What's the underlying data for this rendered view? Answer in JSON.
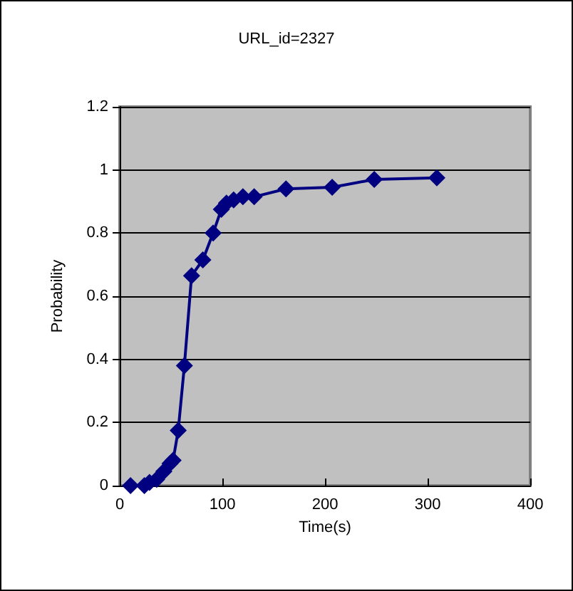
{
  "chart_data": {
    "type": "line",
    "title": "URL_id=2327",
    "xlabel": "Time(s)",
    "ylabel": "Probability",
    "x": [
      10.5,
      24,
      29,
      36,
      43,
      49,
      52,
      57,
      63,
      70,
      81,
      91,
      99,
      104,
      111,
      120,
      131,
      162,
      207,
      248,
      309
    ],
    "series": [
      {
        "color": "#000080",
        "values": [
          0,
          0,
          0.01,
          0.02,
          0.045,
          0.07,
          0.08,
          0.175,
          0.38,
          0.665,
          0.715,
          0.8,
          0.875,
          0.895,
          0.905,
          0.915,
          0.915,
          0.94,
          0.945,
          0.97,
          0.975
        ]
      }
    ],
    "xlim": [
      0,
      400
    ],
    "xticks": [
      0,
      100,
      200,
      300,
      400
    ],
    "ylim": [
      0,
      1.2
    ],
    "yticks": [
      0,
      0.2,
      0.4,
      0.6,
      0.8,
      1,
      1.2
    ],
    "grid": "y",
    "marker": "diamond",
    "line_style": "solid"
  }
}
